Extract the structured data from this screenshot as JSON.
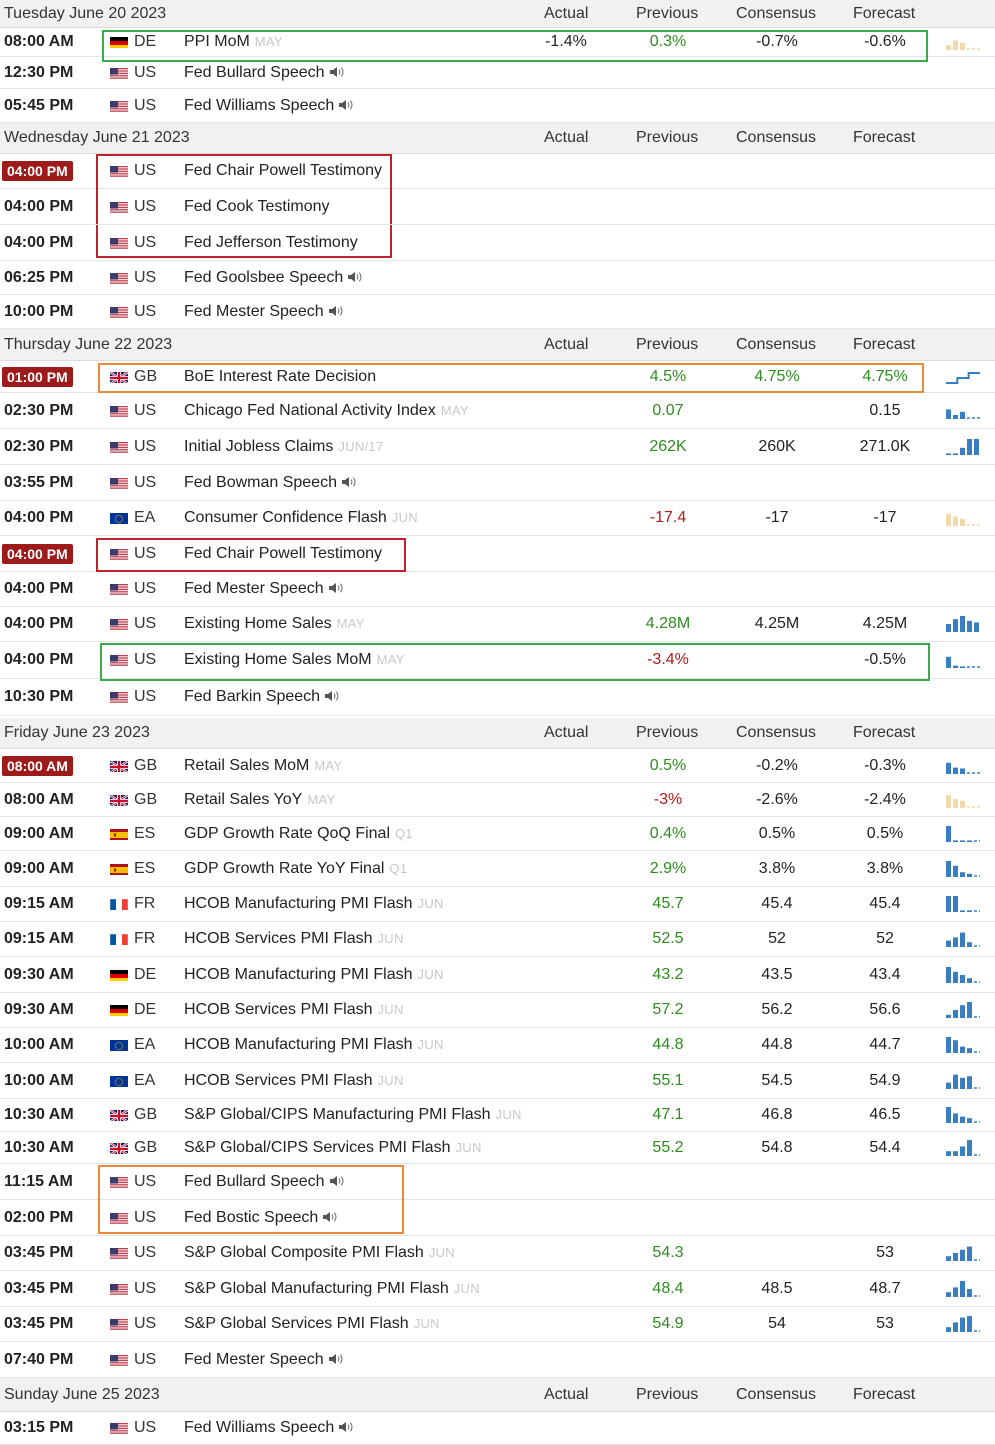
{
  "columns": {
    "actual": "Actual",
    "previous": "Previous",
    "consensus": "Consensus",
    "forecast": "Forecast"
  },
  "colors": {
    "badge": "#9e1b1b",
    "positive": "#2e8b1f",
    "negative": "#b21818",
    "spark_blue": "#3a7ec2",
    "spark_tan": "#efd9a8",
    "highlight_green": "#3cab4b",
    "highlight_red": "#c0222f",
    "highlight_orange": "#ec8a3a"
  },
  "days": [
    {
      "date": "Tuesday June 20 2023",
      "events": [
        {
          "time": "08:00 AM",
          "country": "DE",
          "flag": "de-flag-icon",
          "name": "PPI MoM",
          "period": "MAY",
          "actual": "-1.4%",
          "previous": "0.3%",
          "previous_color": "green",
          "consensus": "-0.7%",
          "forecast": "-0.6%",
          "sparkline": [
            0.3,
            0.6,
            0.45
          ],
          "spark_color": "tan",
          "highlight": "green"
        },
        {
          "time": "12:30 PM",
          "country": "US",
          "flag": "us-flag-icon",
          "name": "Fed Bullard Speech",
          "audio": true
        },
        {
          "time": "05:45 PM",
          "country": "US",
          "flag": "us-flag-icon",
          "name": "Fed Williams Speech",
          "audio": true
        }
      ]
    },
    {
      "date": "Wednesday June 21 2023",
      "events": [
        {
          "time": "04:00 PM",
          "time_badge": true,
          "country": "US",
          "flag": "us-flag-icon",
          "name": "Fed Chair Powell Testimony",
          "highlight": "red"
        },
        {
          "time": "04:00 PM",
          "country": "US",
          "flag": "us-flag-icon",
          "name": "Fed Cook Testimony",
          "highlight": "red"
        },
        {
          "time": "04:00 PM",
          "country": "US",
          "flag": "us-flag-icon",
          "name": "Fed Jefferson Testimony",
          "highlight": "red"
        },
        {
          "time": "06:25 PM",
          "country": "US",
          "flag": "us-flag-icon",
          "name": "Fed Goolsbee Speech",
          "audio": true
        },
        {
          "time": "10:00 PM",
          "country": "US",
          "flag": "us-flag-icon",
          "name": "Fed Mester Speech",
          "audio": true
        }
      ]
    },
    {
      "date": "Thursday June 22 2023",
      "events": [
        {
          "time": "01:00 PM",
          "time_badge": true,
          "country": "GB",
          "flag": "gb-flag-icon",
          "name": "BoE Interest Rate Decision",
          "previous": "4.5%",
          "previous_color": "green",
          "consensus": "4.75%",
          "consensus_color": "green",
          "forecast": "4.75%",
          "forecast_color": "green",
          "sparkline": [
            4.25,
            4.5,
            4.75
          ],
          "spark_color": "blue",
          "spark_type": "step",
          "highlight": "orange"
        },
        {
          "time": "02:30 PM",
          "country": "US",
          "flag": "us-flag-icon",
          "name": "Chicago Fed National Activity Index",
          "period": "MAY",
          "previous": "0.07",
          "previous_color": "green",
          "forecast": "0.15",
          "sparkline": [
            0.6,
            0.25,
            0.45
          ],
          "spark_color": "blue"
        },
        {
          "time": "02:30 PM",
          "country": "US",
          "flag": "us-flag-icon",
          "name": "Initial Jobless Claims",
          "period": "JUN/17",
          "previous": "262K",
          "previous_color": "green",
          "consensus": "260K",
          "forecast": "271.0K",
          "sparkline": [
            0.1,
            0.1,
            0.45,
            1.0,
            1.0
          ],
          "spark_color": "blue"
        },
        {
          "time": "03:55 PM",
          "country": "US",
          "flag": "us-flag-icon",
          "name": "Fed Bowman Speech",
          "audio": true
        },
        {
          "time": "04:00 PM",
          "country": "EA",
          "flag": "ea-flag-icon",
          "name": "Consumer Confidence Flash",
          "period": "JUN",
          "previous": "-17.4",
          "previous_color": "red",
          "consensus": "-17",
          "forecast": "-17",
          "sparkline": [
            0.75,
            0.6,
            0.45
          ],
          "spark_color": "tan"
        },
        {
          "time": "04:00 PM",
          "time_badge": true,
          "country": "US",
          "flag": "us-flag-icon",
          "name": "Fed Chair Powell Testimony",
          "highlight": "red"
        },
        {
          "time": "04:00 PM",
          "country": "US",
          "flag": "us-flag-icon",
          "name": "Fed Mester Speech",
          "audio": true
        },
        {
          "time": "04:00 PM",
          "country": "US",
          "flag": "us-flag-icon",
          "name": "Existing Home Sales",
          "period": "MAY",
          "previous": "4.28M",
          "previous_color": "green",
          "consensus": "4.25M",
          "forecast": "4.25M",
          "sparkline": [
            0.5,
            0.8,
            1.0,
            0.7,
            0.6
          ],
          "spark_color": "blue"
        },
        {
          "time": "04:00 PM",
          "country": "US",
          "flag": "us-flag-icon",
          "name": "Existing Home Sales MoM",
          "period": "MAY",
          "previous": "-3.4%",
          "previous_color": "red",
          "forecast": "-0.5%",
          "sparkline": [
            0.7,
            0.15,
            0.1
          ],
          "spark_color": "blue",
          "highlight": "green"
        },
        {
          "time": "10:30 PM",
          "country": "US",
          "flag": "us-flag-icon",
          "name": "Fed Barkin Speech",
          "audio": true
        }
      ]
    },
    {
      "date": "Friday June 23 2023",
      "events": [
        {
          "time": "08:00 AM",
          "time_badge": true,
          "country": "GB",
          "flag": "gb-flag-icon",
          "name": "Retail Sales MoM",
          "period": "MAY",
          "previous": "0.5%",
          "previous_color": "green",
          "consensus": "-0.2%",
          "forecast": "-0.3%",
          "sparkline": [
            0.7,
            0.4,
            0.35
          ],
          "spark_color": "blue"
        },
        {
          "time": "08:00 AM",
          "country": "GB",
          "flag": "gb-flag-icon",
          "name": "Retail Sales YoY",
          "period": "MAY",
          "previous": "-3%",
          "previous_color": "red",
          "consensus": "-2.6%",
          "forecast": "-2.4%",
          "sparkline": [
            0.8,
            0.55,
            0.45
          ],
          "spark_color": "tan"
        },
        {
          "time": "09:00 AM",
          "country": "ES",
          "flag": "es-flag-icon",
          "name": "GDP Growth Rate QoQ Final",
          "period": "Q1",
          "previous": "0.4%",
          "previous_color": "green",
          "consensus": "0.5%",
          "forecast": "0.5%",
          "sparkline": [
            1.0,
            0.1,
            0.1,
            0.1
          ],
          "spark_color": "blue"
        },
        {
          "time": "09:00 AM",
          "country": "ES",
          "flag": "es-flag-icon",
          "name": "GDP Growth Rate YoY Final",
          "period": "Q1",
          "previous": "2.9%",
          "previous_color": "green",
          "consensus": "3.8%",
          "forecast": "3.8%",
          "sparkline": [
            1.0,
            0.7,
            0.3,
            0.2
          ],
          "spark_color": "blue"
        },
        {
          "time": "09:15 AM",
          "country": "FR",
          "flag": "fr-flag-icon",
          "name": "HCOB Manufacturing PMI Flash",
          "period": "JUN",
          "previous": "45.7",
          "previous_color": "green",
          "consensus": "45.4",
          "forecast": "45.4",
          "sparkline": [
            1.0,
            1.0,
            0.1,
            0.1
          ],
          "spark_color": "blue"
        },
        {
          "time": "09:15 AM",
          "country": "FR",
          "flag": "fr-flag-icon",
          "name": "HCOB Services PMI Flash",
          "period": "JUN",
          "previous": "52.5",
          "previous_color": "green",
          "consensus": "52",
          "forecast": "52",
          "sparkline": [
            0.4,
            0.6,
            0.9,
            0.3
          ],
          "spark_color": "blue"
        },
        {
          "time": "09:30 AM",
          "country": "DE",
          "flag": "de-flag-icon",
          "name": "HCOB Manufacturing PMI Flash",
          "period": "JUN",
          "previous": "43.2",
          "previous_color": "green",
          "consensus": "43.5",
          "forecast": "43.4",
          "sparkline": [
            1.0,
            0.7,
            0.5,
            0.3
          ],
          "spark_color": "blue"
        },
        {
          "time": "09:30 AM",
          "country": "DE",
          "flag": "de-flag-icon",
          "name": "HCOB Services PMI Flash",
          "period": "JUN",
          "previous": "57.2",
          "previous_color": "green",
          "consensus": "56.2",
          "forecast": "56.6",
          "sparkline": [
            0.2,
            0.5,
            0.8,
            1.0
          ],
          "spark_color": "blue"
        },
        {
          "time": "10:00 AM",
          "country": "EA",
          "flag": "ea-flag-icon",
          "name": "HCOB Manufacturing PMI Flash",
          "period": "JUN",
          "previous": "44.8",
          "previous_color": "green",
          "consensus": "44.8",
          "forecast": "44.7",
          "sparkline": [
            1.0,
            0.8,
            0.4,
            0.3
          ],
          "spark_color": "blue"
        },
        {
          "time": "10:00 AM",
          "country": "EA",
          "flag": "ea-flag-icon",
          "name": "HCOB Services PMI Flash",
          "period": "JUN",
          "previous": "55.1",
          "previous_color": "green",
          "consensus": "54.5",
          "forecast": "54.9",
          "sparkline": [
            0.4,
            0.9,
            0.7,
            0.8
          ],
          "spark_color": "blue"
        },
        {
          "time": "10:30 AM",
          "country": "GB",
          "flag": "gb-flag-icon",
          "name": "S&P Global/CIPS Manufacturing PMI Flash",
          "period": "JUN",
          "previous": "47.1",
          "previous_color": "green",
          "consensus": "46.8",
          "forecast": "46.5",
          "sparkline": [
            1.0,
            0.6,
            0.4,
            0.3
          ],
          "spark_color": "blue"
        },
        {
          "time": "10:30 AM",
          "country": "GB",
          "flag": "gb-flag-icon",
          "name": "S&P Global/CIPS Services PMI Flash",
          "period": "JUN",
          "previous": "55.2",
          "previous_color": "green",
          "consensus": "54.8",
          "forecast": "54.4",
          "sparkline": [
            0.3,
            0.3,
            0.6,
            1.0
          ],
          "spark_color": "blue"
        },
        {
          "time": "11:15 AM",
          "country": "US",
          "flag": "us-flag-icon",
          "name": "Fed Bullard Speech",
          "audio": true,
          "highlight": "orange"
        },
        {
          "time": "02:00 PM",
          "country": "US",
          "flag": "us-flag-icon",
          "name": "Fed Bostic Speech",
          "audio": true,
          "highlight": "orange"
        },
        {
          "time": "03:45 PM",
          "country": "US",
          "flag": "us-flag-icon",
          "name": "S&P Global Composite PMI Flash",
          "period": "JUN",
          "previous": "54.3",
          "previous_color": "green",
          "forecast": "53",
          "sparkline": [
            0.3,
            0.5,
            0.7,
            0.9
          ],
          "spark_color": "blue"
        },
        {
          "time": "03:45 PM",
          "country": "US",
          "flag": "us-flag-icon",
          "name": "S&P Global Manufacturing PMI Flash",
          "period": "JUN",
          "previous": "48.4",
          "previous_color": "green",
          "consensus": "48.5",
          "forecast": "48.7",
          "sparkline": [
            0.3,
            0.6,
            1.0,
            0.5
          ],
          "spark_color": "blue"
        },
        {
          "time": "03:45 PM",
          "country": "US",
          "flag": "us-flag-icon",
          "name": "S&P Global Services PMI Flash",
          "period": "JUN",
          "previous": "54.9",
          "previous_color": "green",
          "consensus": "54",
          "forecast": "53",
          "sparkline": [
            0.3,
            0.6,
            0.9,
            1.0
          ],
          "spark_color": "blue"
        },
        {
          "time": "07:40 PM",
          "country": "US",
          "flag": "us-flag-icon",
          "name": "Fed Mester Speech",
          "audio": true
        }
      ]
    },
    {
      "date": "Sunday June 25 2023",
      "events": [
        {
          "time": "03:15 PM",
          "country": "US",
          "flag": "us-flag-icon",
          "name": "Fed Williams Speech",
          "audio": true
        }
      ]
    }
  ]
}
